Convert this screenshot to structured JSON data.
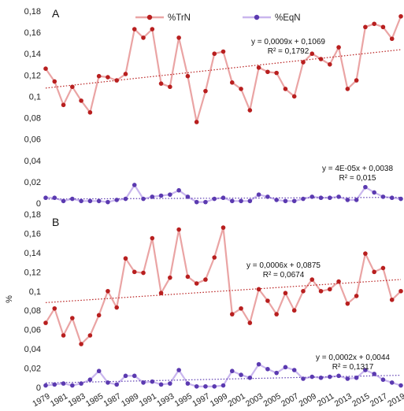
{
  "chart_data": {
    "type": "line",
    "ylabel": "%",
    "legend": {
      "placement": "top-center",
      "entries": [
        "%TrN",
        "%EqN"
      ]
    },
    "colors": {
      "TrN_line": "#eaa4a4",
      "TrN_marker": "#b81f1f",
      "EqN_line": "#c9b6ee",
      "EqN_marker": "#5b3ab0"
    },
    "x": [
      1979,
      1980,
      1981,
      1982,
      1983,
      1984,
      1985,
      1986,
      1987,
      1988,
      1989,
      1990,
      1991,
      1992,
      1993,
      1994,
      1995,
      1996,
      1997,
      1998,
      1999,
      2000,
      2001,
      2002,
      2003,
      2004,
      2005,
      2006,
      2007,
      2008,
      2009,
      2010,
      2011,
      2012,
      2013,
      2014,
      2015,
      2016,
      2017,
      2018,
      2019
    ],
    "x_tick_labels": [
      "1979",
      "1981",
      "1983",
      "1985",
      "1987",
      "1989",
      "1991",
      "1993",
      "1995",
      "1997",
      "1999",
      "2001",
      "2003",
      "2005",
      "2007",
      "2009",
      "2011",
      "2013",
      "2015",
      "2017",
      "2019"
    ],
    "panels": [
      {
        "label": "A",
        "ylim": [
          0,
          0.18
        ],
        "yticks": [
          0,
          0.02,
          0.04,
          0.06,
          0.08,
          0.1,
          0.12,
          0.14,
          0.16,
          0.18
        ],
        "ytick_labels": [
          "0",
          "0,02",
          "0,04",
          "0,06",
          "0,08",
          "0,1",
          "0,12",
          "0,14",
          "0,16",
          "0,18"
        ],
        "series": [
          {
            "name": "%TrN",
            "values": [
              0.126,
              0.114,
              0.092,
              0.109,
              0.096,
              0.085,
              0.119,
              0.118,
              0.115,
              0.121,
              0.163,
              0.155,
              0.163,
              0.112,
              0.109,
              0.155,
              0.119,
              0.076,
              0.105,
              0.14,
              0.142,
              0.113,
              0.107,
              0.087,
              0.127,
              0.123,
              0.122,
              0.107,
              0.1,
              0.132,
              0.14,
              0.135,
              0.13,
              0.146,
              0.107,
              0.115,
              0.165,
              0.168,
              0.165,
              0.154,
              0.175
            ],
            "trendline": {
              "slope": 0.0009,
              "intercept": 0.1069,
              "equation": "y = 0,0009x + 0,1069",
              "r2": "R² = 0,1792"
            }
          },
          {
            "name": "%EqN",
            "values": [
              0.005,
              0.005,
              0.002,
              0.004,
              0.002,
              0.002,
              0.002,
              0.001,
              0.003,
              0.004,
              0.017,
              0.004,
              0.006,
              0.007,
              0.008,
              0.012,
              0.006,
              0.001,
              0.001,
              0.004,
              0.005,
              0.002,
              0.002,
              0.002,
              0.008,
              0.006,
              0.003,
              0.002,
              0.002,
              0.004,
              0.006,
              0.005,
              0.005,
              0.006,
              0.003,
              0.003,
              0.015,
              0.01,
              0.006,
              0.005,
              0.004
            ],
            "trendline": {
              "slope": 4e-05,
              "intercept": 0.0038,
              "equation": "y = 4E-05x + 0,0038",
              "r2": "R² = 0,015"
            }
          }
        ]
      },
      {
        "label": "B",
        "ylim": [
          0,
          0.18
        ],
        "yticks": [
          0,
          0.02,
          0.04,
          0.06,
          0.08,
          0.1,
          0.12,
          0.14,
          0.16,
          0.18
        ],
        "ytick_labels": [
          "0",
          "0,02",
          "0,04",
          "0,06",
          "0,08",
          "0,1",
          "0,12",
          "0,14",
          "0,16",
          "0,18"
        ],
        "series": [
          {
            "name": "%TrN",
            "values": [
              0.067,
              0.082,
              0.054,
              0.072,
              0.045,
              0.054,
              0.075,
              0.1,
              0.083,
              0.134,
              0.12,
              0.119,
              0.155,
              0.098,
              0.114,
              0.164,
              0.115,
              0.108,
              0.112,
              0.135,
              0.166,
              0.076,
              0.082,
              0.067,
              0.102,
              0.09,
              0.076,
              0.098,
              0.08,
              0.1,
              0.112,
              0.1,
              0.102,
              0.11,
              0.087,
              0.095,
              0.139,
              0.12,
              0.124,
              0.091,
              0.1
            ],
            "trendline": {
              "slope": 0.0006,
              "intercept": 0.0875,
              "equation": "y = 0,0006x + 0,0875",
              "r2": "R² = 0,0674"
            }
          },
          {
            "name": "%EqN",
            "values": [
              0.002,
              0.003,
              0.004,
              0.002,
              0.004,
              0.008,
              0.017,
              0.005,
              0.003,
              0.012,
              0.012,
              0.005,
              0.006,
              0.003,
              0.004,
              0.018,
              0.004,
              0.001,
              0.001,
              0.001,
              0.002,
              0.017,
              0.013,
              0.01,
              0.024,
              0.019,
              0.015,
              0.021,
              0.018,
              0.009,
              0.011,
              0.01,
              0.011,
              0.012,
              0.009,
              0.01,
              0.018,
              0.014,
              0.008,
              0.005,
              0.002
            ],
            "trendline": {
              "slope": 0.0002,
              "intercept": 0.0044,
              "equation": "y = 0,0002x + 0,0044",
              "r2": "R² = 0,1317"
            }
          }
        ]
      }
    ]
  }
}
